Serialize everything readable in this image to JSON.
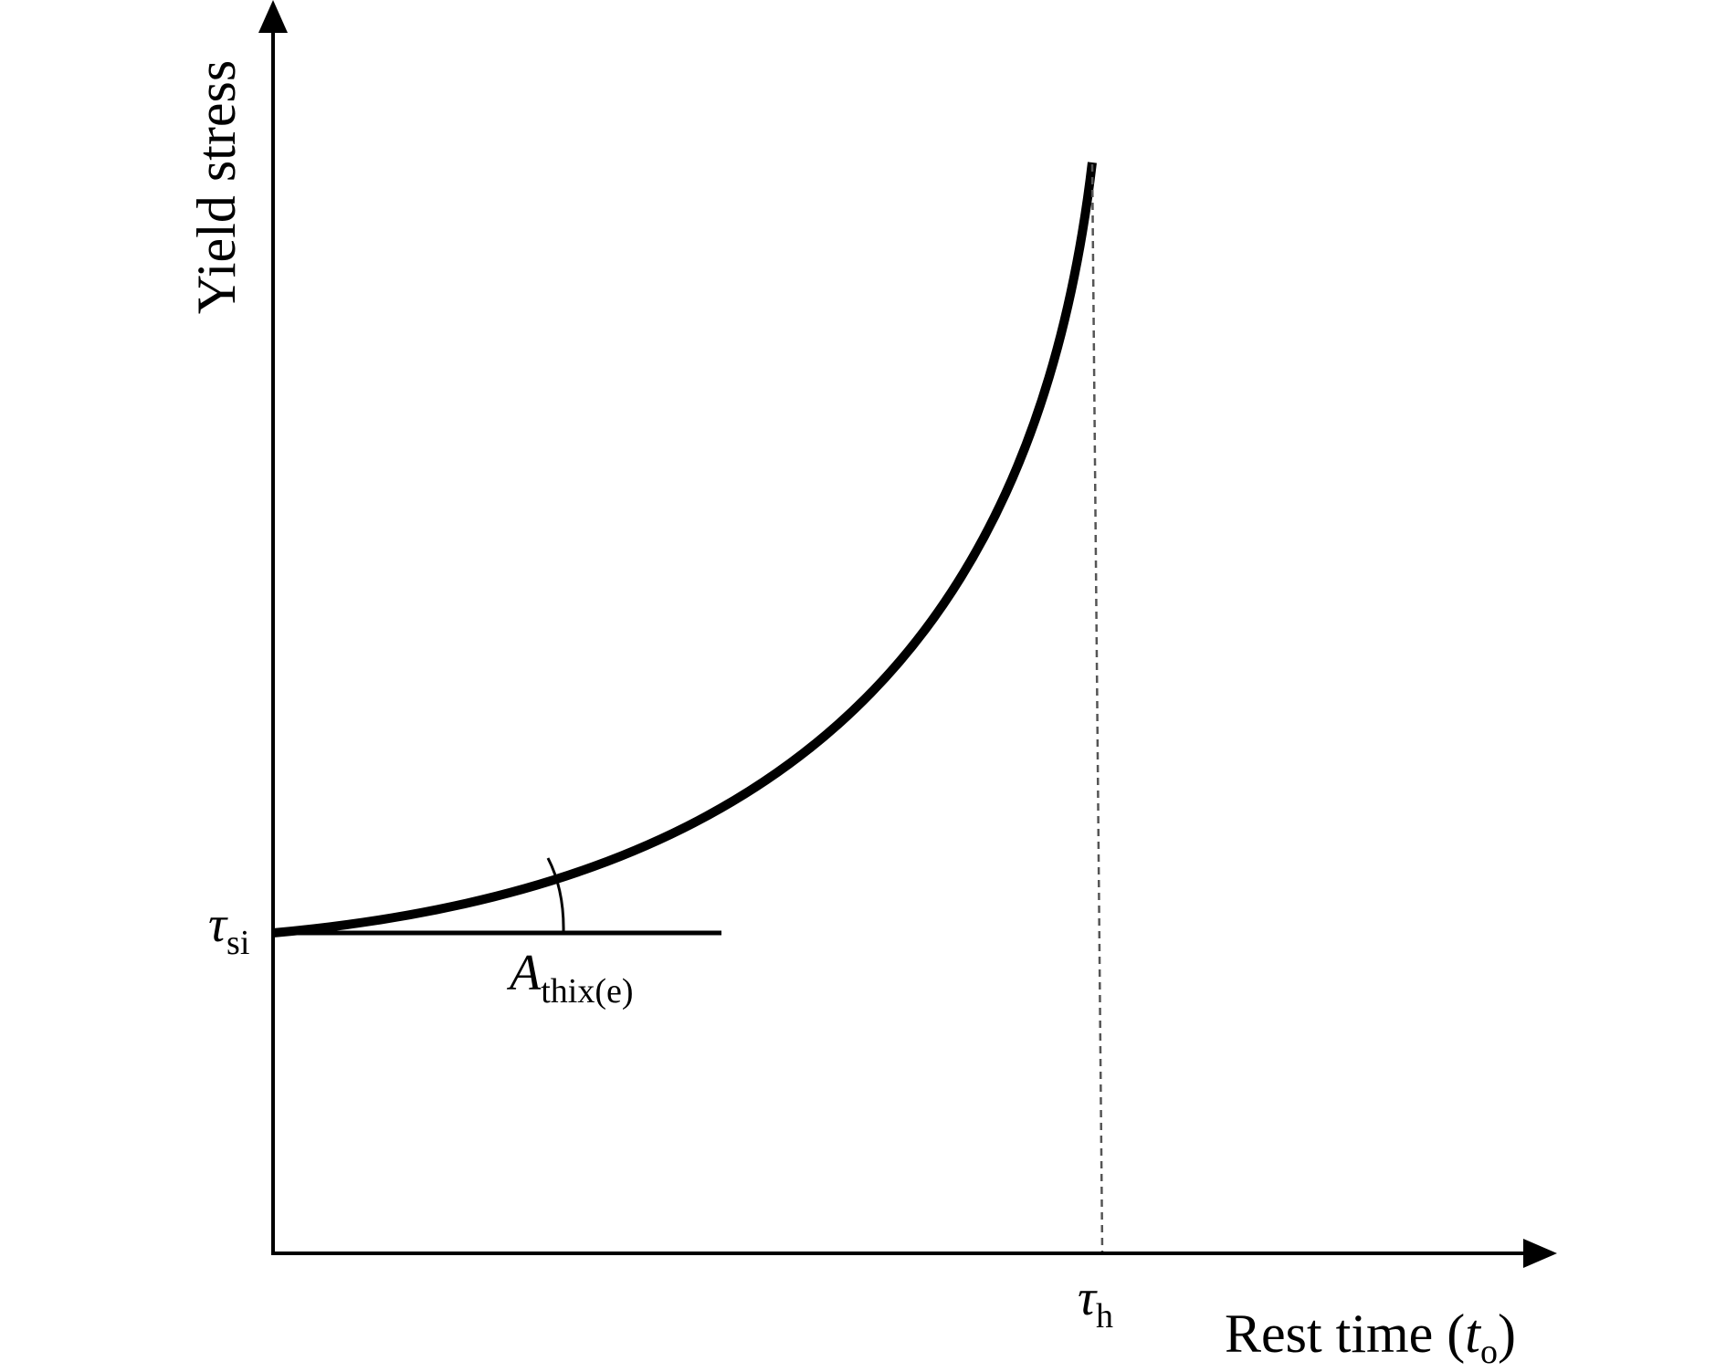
{
  "diagram": {
    "y_axis_label": "Yield stress",
    "x_axis_label": {
      "prefix": "Rest time (",
      "symbol": "t",
      "subscript": "o",
      "suffix": ")"
    },
    "initial_stress_label": {
      "symbol": "τ",
      "subscript": "si"
    },
    "angle_label": {
      "symbol": "A",
      "subscript": "thix(e)"
    },
    "time_label": {
      "symbol": "τ",
      "subscript": "h"
    },
    "colors": {
      "ink": "#000000",
      "dashed_line": "#555555"
    }
  }
}
